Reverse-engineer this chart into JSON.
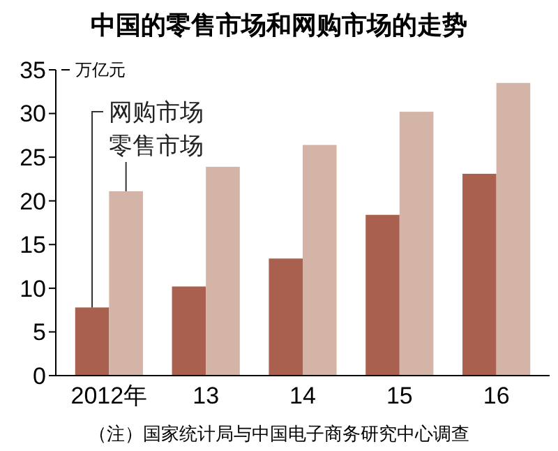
{
  "chart_data": {
    "type": "bar",
    "title": "中国的零售市场和网购市场的走势",
    "ylabel": "万亿元",
    "categories": [
      "2012年",
      "13",
      "14",
      "15",
      "16"
    ],
    "series": [
      {
        "name": "网购市场",
        "color": "#a9604e",
        "values": [
          7.8,
          10.2,
          13.4,
          18.4,
          23.1
        ]
      },
      {
        "name": "零售市场",
        "color": "#d3b4a7",
        "values": [
          21.1,
          23.9,
          26.4,
          30.2,
          33.5
        ]
      }
    ],
    "ylim": [
      0,
      35
    ],
    "yticks": [
      0,
      5,
      10,
      15,
      20,
      25,
      30,
      35
    ],
    "annotations": [
      "（注）国家统计局与中国电子商务研究中心调查"
    ]
  }
}
